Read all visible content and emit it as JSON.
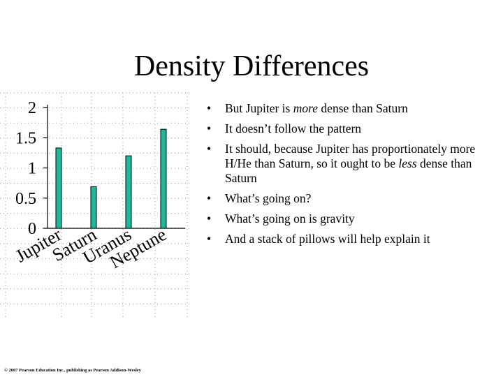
{
  "slide": {
    "title": "Density Differences",
    "bullet_glyph": "•",
    "bullets": [
      {
        "parts": [
          {
            "text": "But Jupiter is "
          },
          {
            "text": "more",
            "italic": true
          },
          {
            "text": " dense than Saturn"
          }
        ]
      },
      {
        "parts": [
          {
            "text": "It doesn’t follow the pattern"
          }
        ]
      },
      {
        "parts": [
          {
            "text": "It should, because Jupiter has proportionately more H/He than Saturn, so it ought to be "
          },
          {
            "text": "less",
            "italic": true
          },
          {
            "text": " dense than Saturn"
          }
        ]
      },
      {
        "parts": [
          {
            "text": "What’s going on?"
          }
        ]
      },
      {
        "parts": [
          {
            "text": "What’s going on is gravity"
          }
        ]
      },
      {
        "parts": [
          {
            "text": "And a stack of pillows will help explain it"
          }
        ]
      }
    ],
    "copyright": "© 2007 Pearson Education Inc., publishing as Pearson Addison-Wesley"
  },
  "chart_data": {
    "type": "bar",
    "categories": [
      "Jupiter",
      "Saturn",
      "Uranus",
      "Neptune"
    ],
    "values": [
      1.33,
      0.69,
      1.2,
      1.64
    ],
    "ylim": [
      0,
      2
    ],
    "yticks": [
      "0",
      "0.5",
      "1",
      "1.5",
      "2"
    ],
    "ytick_values": [
      0,
      0.5,
      1,
      1.5,
      2
    ],
    "bar_color": "#1fb89a",
    "bar_edge_color": "#000000",
    "grid": true,
    "grid_style": "dotted",
    "xlabel": "",
    "ylabel": "",
    "title": ""
  }
}
